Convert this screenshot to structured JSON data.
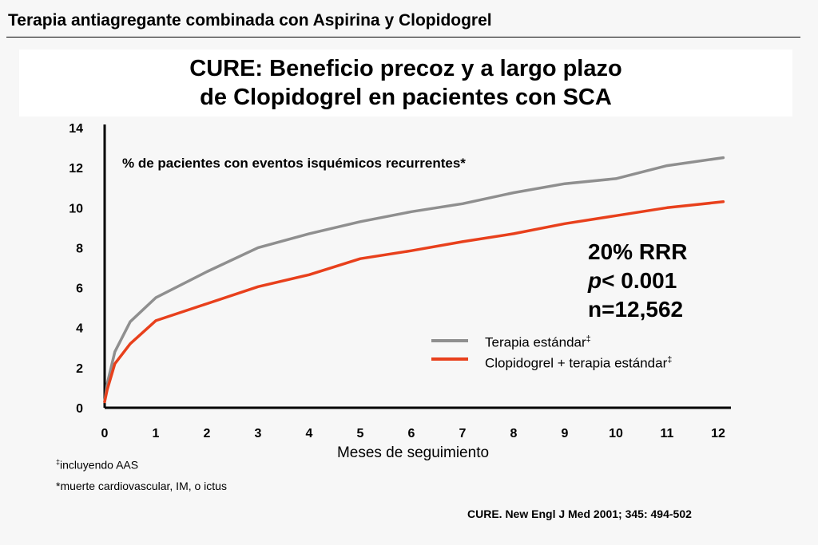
{
  "header": {
    "title": "Terapia antiagregante combinada con Aspirina y Clopidogrel"
  },
  "title": {
    "line1": "CURE: Beneficio precoz y a largo plazo",
    "line2": "de Clopidogrel en pacientes con SCA"
  },
  "chart_data": {
    "type": "line",
    "title": "% de pacientes con eventos isquémicos recurrentes*",
    "xlabel": "Meses de seguimiento",
    "ylabel": "",
    "xlim": [
      0,
      12.2
    ],
    "ylim": [
      0,
      14
    ],
    "x_ticks": [
      "0",
      "1",
      "2",
      "3",
      "4",
      "5",
      "6",
      "7",
      "8",
      "9",
      "10",
      "11",
      "12"
    ],
    "y_ticks": [
      "0",
      "2",
      "4",
      "6",
      "8",
      "10",
      "12",
      "14"
    ],
    "grid": false,
    "series": [
      {
        "name": "Terapia estándar",
        "marker": "‡",
        "color": "#8f8f8f",
        "points": [
          [
            0,
            0.3
          ],
          [
            0.05,
            1.2
          ],
          [
            0.2,
            2.8
          ],
          [
            0.5,
            4.3
          ],
          [
            1,
            5.5
          ],
          [
            2,
            6.8
          ],
          [
            3,
            8.0
          ],
          [
            4,
            8.7
          ],
          [
            5,
            9.3
          ],
          [
            6,
            9.8
          ],
          [
            7,
            10.2
          ],
          [
            8,
            10.75
          ],
          [
            9,
            11.2
          ],
          [
            10,
            11.45
          ],
          [
            11,
            12.1
          ],
          [
            12.1,
            12.5
          ]
        ]
      },
      {
        "name": "Clopidogrel + terapia estándar",
        "marker": "‡",
        "color": "#e8401c",
        "points": [
          [
            0,
            0.3
          ],
          [
            0.05,
            0.9
          ],
          [
            0.2,
            2.2
          ],
          [
            0.5,
            3.2
          ],
          [
            1,
            4.35
          ],
          [
            2,
            5.2
          ],
          [
            3,
            6.05
          ],
          [
            4,
            6.65
          ],
          [
            5,
            7.45
          ],
          [
            6,
            7.85
          ],
          [
            7,
            8.3
          ],
          [
            8,
            8.7
          ],
          [
            9,
            9.2
          ],
          [
            10,
            9.6
          ],
          [
            11,
            10.0
          ],
          [
            12.1,
            10.3
          ]
        ]
      }
    ],
    "annotations": {
      "rrr": "20% RRR",
      "p_letter": "p",
      "p_value": "< 0.001",
      "n": "n=12,562"
    }
  },
  "footnotes": {
    "f1_marker": "‡",
    "f1_text": "incluyendo AAS",
    "f2_text": "*muerte cardiovascular, IM, o ictus"
  },
  "citation": "CURE.  New Engl J  Med 2001; 345: 494-502",
  "colors": {
    "standard": "#8f8f8f",
    "clopidogrel": "#e8401c",
    "axis": "#000000"
  }
}
